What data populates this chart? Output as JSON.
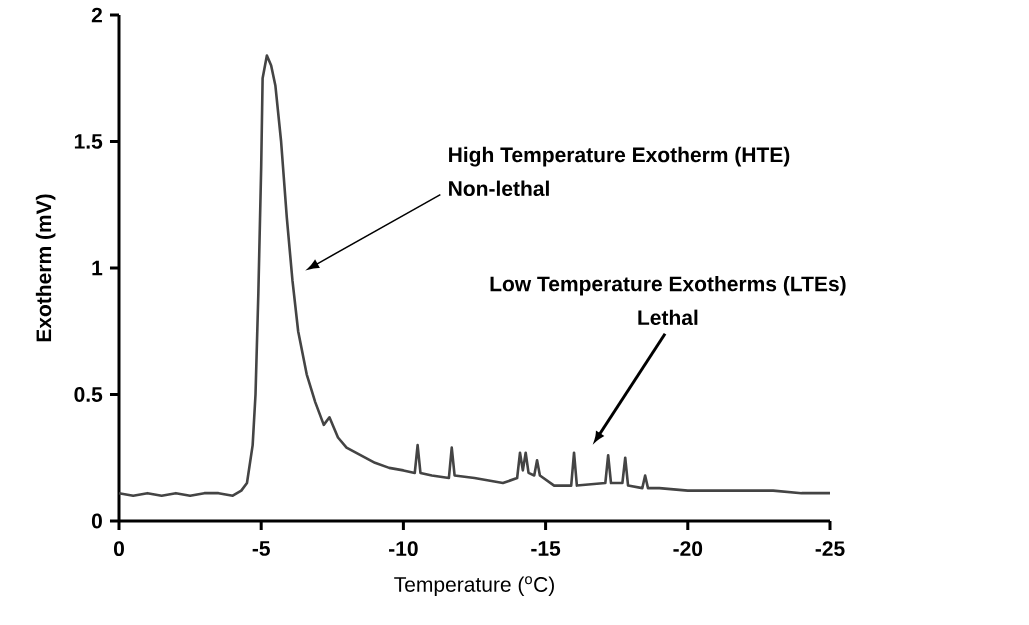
{
  "chart_data": {
    "type": "line",
    "xlabel": "Temperature ($^{o}$C)",
    "ylabel": "Exotherm (mV)",
    "x": [
      0,
      -0.5,
      -1,
      -1.5,
      -2,
      -2.5,
      -3,
      -3.5,
      -4,
      -4.3,
      -4.5,
      -4.7,
      -4.8,
      -4.9,
      -5.0,
      -5.05,
      -5.2,
      -5.35,
      -5.5,
      -5.7,
      -5.9,
      -6.1,
      -6.3,
      -6.6,
      -6.9,
      -7.2,
      -7.4,
      -7.7,
      -8.0,
      -8.5,
      -9,
      -9.5,
      -10,
      -10.4,
      -10.5,
      -10.6,
      -11,
      -11.6,
      -11.7,
      -11.8,
      -12.5,
      -13.5,
      -14,
      -14.1,
      -14.2,
      -14.3,
      -14.4,
      -14.6,
      -14.7,
      -14.8,
      -15.3,
      -15.9,
      -16.0,
      -16.1,
      -17.1,
      -17.2,
      -17.3,
      -17.7,
      -17.8,
      -17.9,
      -18.4,
      -18.5,
      -18.6,
      -19,
      -20,
      -21,
      -22,
      -23,
      -24,
      -25
    ],
    "values": [
      0.11,
      0.1,
      0.11,
      0.1,
      0.11,
      0.1,
      0.11,
      0.11,
      0.1,
      0.12,
      0.15,
      0.3,
      0.5,
      0.9,
      1.4,
      1.75,
      1.84,
      1.8,
      1.72,
      1.5,
      1.2,
      0.95,
      0.75,
      0.58,
      0.47,
      0.38,
      0.41,
      0.33,
      0.29,
      0.26,
      0.23,
      0.21,
      0.2,
      0.19,
      0.3,
      0.19,
      0.18,
      0.17,
      0.29,
      0.18,
      0.17,
      0.15,
      0.17,
      0.27,
      0.2,
      0.27,
      0.19,
      0.18,
      0.24,
      0.18,
      0.14,
      0.14,
      0.27,
      0.14,
      0.15,
      0.26,
      0.15,
      0.15,
      0.25,
      0.14,
      0.13,
      0.18,
      0.13,
      0.13,
      0.12,
      0.12,
      0.12,
      0.12,
      0.11,
      0.11
    ],
    "color": "#444444",
    "xlim": [
      0,
      -25
    ],
    "xticks": [
      0,
      -5,
      -10,
      -15,
      -20,
      -25
    ],
    "ylim": [
      0,
      2
    ],
    "yticks": [
      0,
      0.5,
      1,
      1.5,
      2
    ],
    "annotations": [
      "High Temperature Exotherm (HTE)",
      "Non-lethal",
      "Low Temperature Exotherms (LTEs)",
      "Lethal"
    ]
  }
}
